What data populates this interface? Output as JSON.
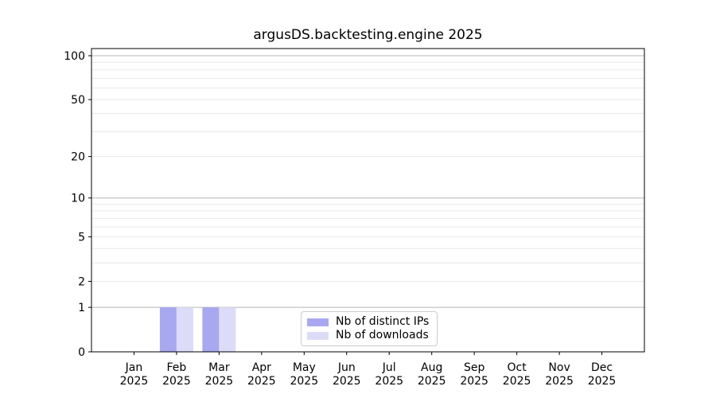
{
  "chart_data": {
    "type": "bar",
    "title": "argusDS.backtesting.engine 2025",
    "categories": [
      "Jan",
      "Feb",
      "Mar",
      "Apr",
      "May",
      "Jun",
      "Jul",
      "Aug",
      "Sep",
      "Oct",
      "Nov",
      "Dec"
    ],
    "category_year": "2025",
    "series": [
      {
        "name": "Nb of distinct IPs",
        "color": "#a8a8f0",
        "values": [
          0,
          1,
          1,
          0,
          0,
          0,
          0,
          0,
          0,
          0,
          0,
          0
        ]
      },
      {
        "name": "Nb of downloads",
        "color": "#dcdcf8",
        "values": [
          0,
          1,
          1,
          0,
          0,
          0,
          0,
          0,
          0,
          0,
          0,
          0
        ]
      }
    ],
    "yscale": "log1p",
    "ylim": [
      0,
      112
    ],
    "ytick_labels": [
      0,
      1,
      2,
      5,
      10,
      20,
      50,
      100
    ],
    "grid_major_values": [
      1,
      10,
      100
    ],
    "grid_minor_values": [
      2,
      3,
      4,
      5,
      6,
      7,
      8,
      9,
      20,
      30,
      40,
      50,
      60,
      70,
      80,
      90
    ],
    "legend": {
      "position": "lower center",
      "entries": [
        "Nb of distinct IPs",
        "Nb of downloads"
      ]
    }
  },
  "colors": {
    "background": "#ffffff",
    "spine": "#000000",
    "grid_major": "#b5b5b5",
    "grid_minor": "#e9e9e9",
    "text": "#000000",
    "legend_border": "#cccccc",
    "bar_distinct_ips": "#a8a8f0",
    "bar_downloads": "#dcdcf8"
  }
}
